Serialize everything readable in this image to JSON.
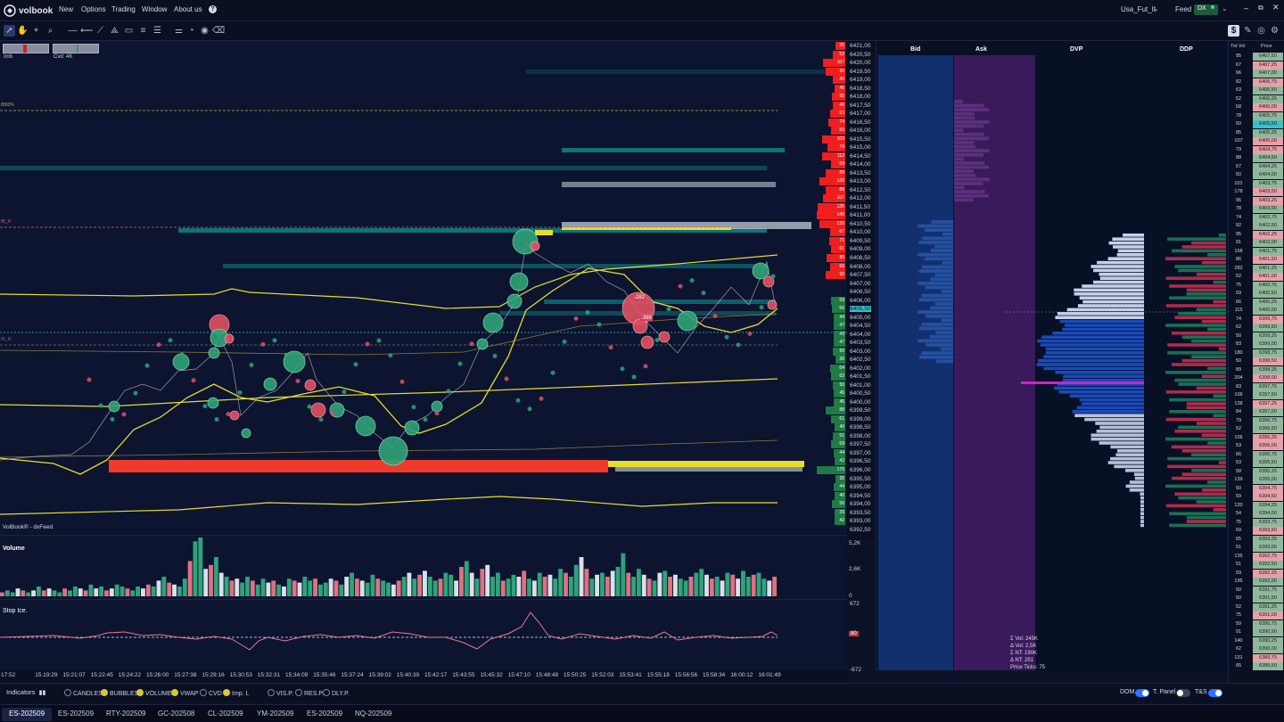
{
  "app": {
    "logo": "volbook",
    "menu": [
      "New",
      "Options",
      "Trading",
      "Window",
      "About us"
    ],
    "help_icon": "help-icon",
    "workspace": "Usa_Fut_It",
    "feed_label": "Feed",
    "feed_value": "DX",
    "window_controls": [
      "minimize-icon",
      "restore-icon",
      "close-icon"
    ]
  },
  "toolbar": {
    "tools": [
      "cursor-icon",
      "hand-icon",
      "crosshair-icon",
      "zoom-icon",
      "hline-icon",
      "ray-icon",
      "trendline-icon",
      "ruler-icon",
      "rectangle-icon",
      "fibonacci-icon",
      "list-icon",
      "settings-sliders-icon",
      "alert-icon",
      "comment-icon",
      "eraser-icon"
    ],
    "right_tools": [
      "dollar-icon",
      "edit-icon",
      "target-icon",
      "gear-icon"
    ]
  },
  "chart": {
    "imb_label": "Imb",
    "cvd_label": "Cvd: 4K",
    "watermark": "VolBook® - dxFeed",
    "level_labels": [
      "IB50%",
      "IB_H",
      "IB_M"
    ],
    "bubble_labels": [
      "-282",
      "-388"
    ],
    "colors": {
      "buy": "#2fa37a",
      "sell": "#e05060",
      "vwap": "#e8dc2a",
      "heat": "#0e7d82",
      "bg": "#0c1430"
    }
  },
  "price_axis": {
    "ask_values": [
      "35",
      "52",
      "107",
      "90",
      "49",
      "40",
      "55",
      "48",
      "63",
      "74",
      "59",
      "109",
      "78",
      "112",
      "59",
      "89",
      "126",
      "88",
      "107",
      "135",
      "140",
      "125",
      "67",
      "71",
      "61",
      "85",
      "66",
      "90"
    ],
    "bid_values": [
      "59",
      "56",
      "44",
      "47",
      "43",
      "47",
      "50",
      "36",
      "64",
      "62",
      "50",
      "45",
      "45",
      "88",
      "61",
      "40",
      "51",
      "59",
      "44",
      "42",
      "176",
      "35",
      "44",
      "40",
      "56",
      "39",
      "42"
    ],
    "current_price": "6405,50",
    "cursor_price": "6404,00",
    "prices": [
      "6421,00",
      "6420,50",
      "6420,00",
      "6419,50",
      "6419,00",
      "6418,50",
      "6418,00",
      "6417,50",
      "6417,00",
      "6416,50",
      "6416,00",
      "6415,50",
      "6415,00",
      "6414,50",
      "6414,00",
      "6413,50",
      "6413,00",
      "6412,50",
      "6412,00",
      "6411,50",
      "6411,00",
      "6410,50",
      "6410,00",
      "6409,50",
      "6409,00",
      "6408,50",
      "6408,00",
      "6407,50",
      "6407,00",
      "6406,50",
      "6406,00",
      "6405,50",
      "6405,00",
      "6404,50",
      "6404,00",
      "6403,50",
      "6403,00",
      "6402,50",
      "6402,00",
      "6401,50",
      "6401,00",
      "6400,50",
      "6400,00",
      "6399,50",
      "6399,00",
      "6398,50",
      "6398,00",
      "6397,50",
      "6397,00",
      "6396,50",
      "6396,00",
      "6395,50",
      "6395,00",
      "6394,50",
      "6394,00",
      "6393,50",
      "6393,00",
      "6392,50"
    ]
  },
  "volume_pane": {
    "label": "Volume",
    "scale": [
      "5,2K",
      "2,6K",
      "0"
    ],
    "bars": [
      2,
      3,
      2,
      4,
      3,
      2,
      3,
      5,
      3,
      4,
      3,
      2,
      4,
      3,
      5,
      4,
      3,
      6,
      4,
      5,
      3,
      4,
      6,
      5,
      4,
      3,
      5,
      4,
      6,
      5,
      8,
      10,
      7,
      6,
      5,
      9,
      18,
      28,
      30,
      14,
      16,
      20,
      12,
      10,
      8,
      9,
      7,
      10,
      8,
      6,
      9,
      7,
      8,
      6,
      5,
      9,
      8,
      7,
      10,
      8,
      9,
      6,
      7,
      9,
      8,
      6,
      10,
      12,
      9,
      8,
      7,
      11,
      9,
      8,
      7,
      6,
      8,
      10,
      12,
      9,
      11,
      13,
      10,
      8,
      9,
      12,
      11,
      8,
      15,
      18,
      12,
      9,
      14,
      16,
      10,
      12,
      8,
      9,
      11,
      10,
      13,
      9,
      8,
      12,
      10,
      11,
      9,
      14,
      12,
      10,
      16,
      20,
      14,
      9,
      11,
      12,
      10,
      13,
      15,
      22,
      12,
      10,
      14,
      11,
      9,
      8,
      12,
      13,
      10,
      11,
      9,
      8,
      10,
      12,
      14,
      11,
      9,
      10,
      8,
      12,
      11,
      9,
      13,
      10,
      11,
      12,
      9,
      8,
      10
    ]
  },
  "stop_pane": {
    "label": "Stop Ice.",
    "scale": [
      "672",
      "-672"
    ],
    "badge": "80"
  },
  "time_axis": [
    "17:52",
    "15:19:29",
    "15:21:07",
    "15:22:45",
    "15:24:22",
    "15:26:00",
    "15:27:38",
    "15:29:16",
    "15:30:53",
    "15:32:31",
    "15:34:09",
    "15:35:46",
    "15:37:24",
    "15:39:02",
    "15:40:39",
    "15:42:17",
    "15:43:55",
    "15:45:32",
    "15:47:10",
    "15:48:48",
    "15:50:25",
    "15:52:03",
    "15:53:41",
    "15:55:18",
    "15:56:56",
    "15:58:34",
    "16:00:12",
    "16:01:49"
  ],
  "dom": {
    "headers": [
      "Bid",
      "Ask",
      "DVP",
      "DDP"
    ],
    "stats": [
      "Σ Vol: 245K",
      "Δ Vol: 2,5K",
      "Σ NT: 190K",
      "Δ NT: 251",
      "Price Ticks: 75"
    ]
  },
  "ladder": {
    "headers": [
      "Tot Vol",
      "Price"
    ],
    "rows": [
      [
        "95",
        "6407,50"
      ],
      [
        "67",
        "6407,25"
      ],
      [
        "96",
        "6407,00"
      ],
      [
        "82",
        "6406,75"
      ],
      [
        "63",
        "6406,50"
      ],
      [
        "52",
        "6406,25"
      ],
      [
        "58",
        "6406,00"
      ],
      [
        "78",
        "6405,75"
      ],
      [
        "50",
        "6405,50"
      ],
      [
        "85",
        "6405,25"
      ],
      [
        "107",
        "6405,00"
      ],
      [
        "79",
        "6404,75"
      ],
      [
        "88",
        "6404,50"
      ],
      [
        "57",
        "6404,25"
      ],
      [
        "50",
        "6404,00"
      ],
      [
        "101",
        "6403,75"
      ],
      [
        "178",
        "6403,50"
      ],
      [
        "96",
        "6403,25"
      ],
      [
        "78",
        "6403,00"
      ],
      [
        "74",
        "6402,75"
      ],
      [
        "92",
        "6402,50"
      ],
      [
        "95",
        "6402,25"
      ],
      [
        "91",
        "6402,00"
      ],
      [
        "158",
        "6401,75"
      ],
      [
        "86",
        "6401,50"
      ],
      [
        "282",
        "6401,25"
      ],
      [
        "52",
        "6401,00"
      ],
      [
        "75",
        "6400,75"
      ],
      [
        "59",
        "6400,50"
      ],
      [
        "66",
        "6400,25"
      ],
      [
        "115",
        "6400,00"
      ],
      [
        "74",
        "6399,75"
      ],
      [
        "62",
        "6399,50"
      ],
      [
        "50",
        "6399,25"
      ],
      [
        "83",
        "6399,00"
      ],
      [
        "180",
        "6398,75"
      ],
      [
        "50",
        "6398,50"
      ],
      [
        "89",
        "6398,25"
      ],
      [
        "204",
        "6398,00"
      ],
      [
        "83",
        "6397,75"
      ],
      [
        "106",
        "6397,50"
      ],
      [
        "138",
        "6397,25"
      ],
      [
        "84",
        "6397,00"
      ],
      [
        "79",
        "6396,75"
      ],
      [
        "52",
        "6396,50"
      ],
      [
        "106",
        "6396,25"
      ],
      [
        "53",
        "6396,00"
      ],
      [
        "66",
        "6395,75"
      ],
      [
        "53",
        "6395,50"
      ],
      [
        "58",
        "6395,25"
      ],
      [
        "139",
        "6395,00"
      ],
      [
        "50",
        "6394,75"
      ],
      [
        "59",
        "6394,50"
      ],
      [
        "120",
        "6394,25"
      ],
      [
        "54",
        "6394,00"
      ],
      [
        "75",
        "6393,75"
      ],
      [
        "69",
        "6393,50"
      ],
      [
        "65",
        "6393,25"
      ],
      [
        "51",
        "6393,00"
      ],
      [
        "135",
        "6392,75"
      ],
      [
        "51",
        "6392,50"
      ],
      [
        "59",
        "6392,25"
      ],
      [
        "195",
        "6392,00"
      ],
      [
        "50",
        "6391,75"
      ],
      [
        "50",
        "6391,50"
      ],
      [
        "52",
        "6391,25"
      ],
      [
        "75",
        "6391,00"
      ],
      [
        "59",
        "6390,75"
      ],
      [
        "91",
        "6390,50"
      ],
      [
        "140",
        "6390,25"
      ],
      [
        "62",
        "6390,00"
      ],
      [
        "131",
        "6389,75"
      ],
      [
        "65",
        "6389,50"
      ]
    ]
  },
  "indicators": {
    "label": "Indicators",
    "options": [
      {
        "label": "CANDLES",
        "on": false
      },
      {
        "label": "BUBBLES",
        "on": true
      },
      {
        "label": "VOLUME",
        "on": true
      },
      {
        "label": "VWAP",
        "on": true
      },
      {
        "label": "CVD",
        "on": false
      },
      {
        "label": "Imp. L",
        "on": true
      },
      {
        "label": "VIS.P.",
        "on": false
      },
      {
        "label": "RES.P.",
        "on": false
      },
      {
        "label": "DLY.P.",
        "on": false
      }
    ],
    "toggles": [
      "DOM",
      "T. Panel",
      "T&S"
    ]
  },
  "tabs": [
    "ES-202509",
    "ES-202509",
    "RTY-202509",
    "GC-202508",
    "CL-202509",
    "YM-202509",
    "ES-202509",
    "NQ-202509"
  ]
}
